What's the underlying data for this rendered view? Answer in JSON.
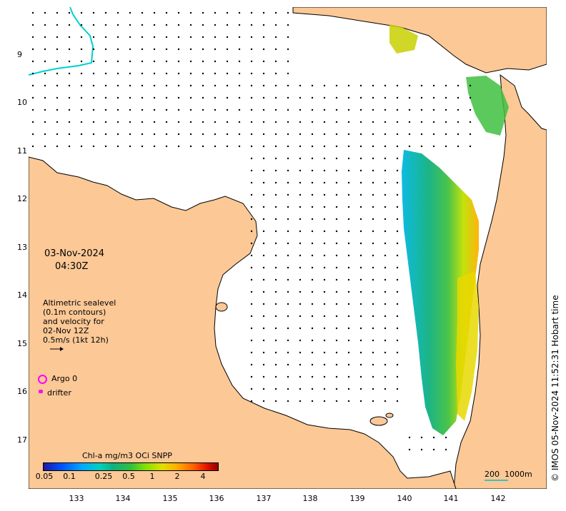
{
  "map": {
    "date": "03-Nov-2024",
    "time": "04:30Z",
    "altimetry_note": [
      "Altimetric sealevel",
      "(0.1m contours)",
      "and velocity for",
      "02-Nov 12Z",
      "0.5m/s (1kt 12h)"
    ],
    "legend": {
      "argo": "Argo 0",
      "drifter": "drifter"
    },
    "colorbar": {
      "title": "Chl-a mg/m3 OCi SNPP",
      "ticks": [
        "0.05",
        "0.1",
        "0.25",
        "0.5",
        "1",
        "2",
        "4"
      ]
    },
    "scale": {
      "label_200": "200",
      "label_1000m": "1000m"
    },
    "credit": "© IMOS 05-Nov-2024 11:52:31 Hobart time",
    "lat_ticks": [
      "9",
      "10",
      "11",
      "12",
      "13",
      "14",
      "15",
      "16",
      "17"
    ],
    "lon_ticks": [
      "133",
      "134",
      "135",
      "136",
      "137",
      "138",
      "139",
      "140",
      "141",
      "142"
    ],
    "colors": {
      "land": "#fbc896",
      "sea": "#ffffff",
      "argo": "#ff00ff",
      "coast": "#000000"
    }
  }
}
